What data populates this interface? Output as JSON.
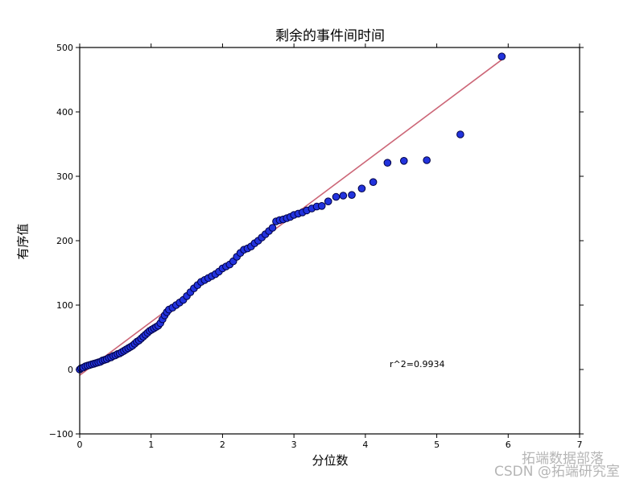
{
  "chart_data": {
    "type": "scatter",
    "title": "剩余的事件间时间",
    "xlabel": "分位数",
    "ylabel": "有序值",
    "xlim": [
      0,
      7
    ],
    "ylim": [
      -100,
      500
    ],
    "xticks": [
      0,
      1,
      2,
      3,
      4,
      5,
      6,
      7
    ],
    "yticks": [
      -100,
      0,
      100,
      200,
      300,
      400,
      500
    ],
    "grid": false,
    "legend": null,
    "annotation": "r^2=0.9934",
    "series": [
      {
        "name": "ordered values",
        "kind": "scatter",
        "color": "#2233dd",
        "edgecolor": "#000044",
        "points": [
          [
            0.0,
            0
          ],
          [
            0.02,
            2
          ],
          [
            0.05,
            3
          ],
          [
            0.08,
            5
          ],
          [
            0.11,
            6
          ],
          [
            0.14,
            7
          ],
          [
            0.17,
            8
          ],
          [
            0.2,
            9
          ],
          [
            0.23,
            10
          ],
          [
            0.26,
            11
          ],
          [
            0.29,
            12
          ],
          [
            0.32,
            14
          ],
          [
            0.35,
            15
          ],
          [
            0.38,
            16
          ],
          [
            0.41,
            18
          ],
          [
            0.44,
            19
          ],
          [
            0.47,
            21
          ],
          [
            0.5,
            22
          ],
          [
            0.53,
            24
          ],
          [
            0.56,
            25
          ],
          [
            0.59,
            27
          ],
          [
            0.62,
            29
          ],
          [
            0.65,
            31
          ],
          [
            0.68,
            33
          ],
          [
            0.71,
            35
          ],
          [
            0.74,
            37
          ],
          [
            0.77,
            40
          ],
          [
            0.8,
            43
          ],
          [
            0.83,
            45
          ],
          [
            0.86,
            48
          ],
          [
            0.89,
            51
          ],
          [
            0.92,
            54
          ],
          [
            0.95,
            57
          ],
          [
            0.98,
            60
          ],
          [
            1.01,
            62
          ],
          [
            1.04,
            64
          ],
          [
            1.07,
            66
          ],
          [
            1.1,
            68
          ],
          [
            1.13,
            72
          ],
          [
            1.16,
            78
          ],
          [
            1.19,
            84
          ],
          [
            1.22,
            89
          ],
          [
            1.25,
            93
          ],
          [
            1.3,
            96
          ],
          [
            1.35,
            100
          ],
          [
            1.4,
            104
          ],
          [
            1.45,
            108
          ],
          [
            1.5,
            114
          ],
          [
            1.55,
            120
          ],
          [
            1.6,
            126
          ],
          [
            1.65,
            131
          ],
          [
            1.7,
            136
          ],
          [
            1.75,
            139
          ],
          [
            1.8,
            142
          ],
          [
            1.85,
            145
          ],
          [
            1.9,
            148
          ],
          [
            1.95,
            152
          ],
          [
            2.0,
            157
          ],
          [
            2.05,
            160
          ],
          [
            2.1,
            163
          ],
          [
            2.15,
            168
          ],
          [
            2.2,
            175
          ],
          [
            2.25,
            181
          ],
          [
            2.3,
            186
          ],
          [
            2.35,
            188
          ],
          [
            2.4,
            191
          ],
          [
            2.45,
            196
          ],
          [
            2.5,
            200
          ],
          [
            2.55,
            205
          ],
          [
            2.6,
            210
          ],
          [
            2.65,
            215
          ],
          [
            2.7,
            220
          ],
          [
            2.75,
            230
          ],
          [
            2.8,
            232
          ],
          [
            2.85,
            233
          ],
          [
            2.9,
            235
          ],
          [
            2.95,
            237
          ],
          [
            3.0,
            240
          ],
          [
            3.06,
            242
          ],
          [
            3.12,
            244
          ],
          [
            3.18,
            247
          ],
          [
            3.25,
            250
          ],
          [
            3.32,
            253
          ],
          [
            3.39,
            254
          ],
          [
            3.48,
            261
          ],
          [
            3.59,
            268
          ],
          [
            3.69,
            270
          ],
          [
            3.81,
            271
          ],
          [
            3.95,
            281
          ],
          [
            4.11,
            291
          ],
          [
            4.31,
            321
          ],
          [
            4.54,
            324
          ],
          [
            4.86,
            325
          ],
          [
            5.33,
            365
          ],
          [
            5.91,
            486
          ]
        ]
      },
      {
        "name": "fit line",
        "kind": "line",
        "color": "#cc6677",
        "points": [
          [
            0.0,
            -9
          ],
          [
            5.91,
            481
          ]
        ]
      }
    ]
  },
  "watermark": {
    "line1": "拓端数据部落",
    "line2": "CSDN @拓端研究室"
  }
}
